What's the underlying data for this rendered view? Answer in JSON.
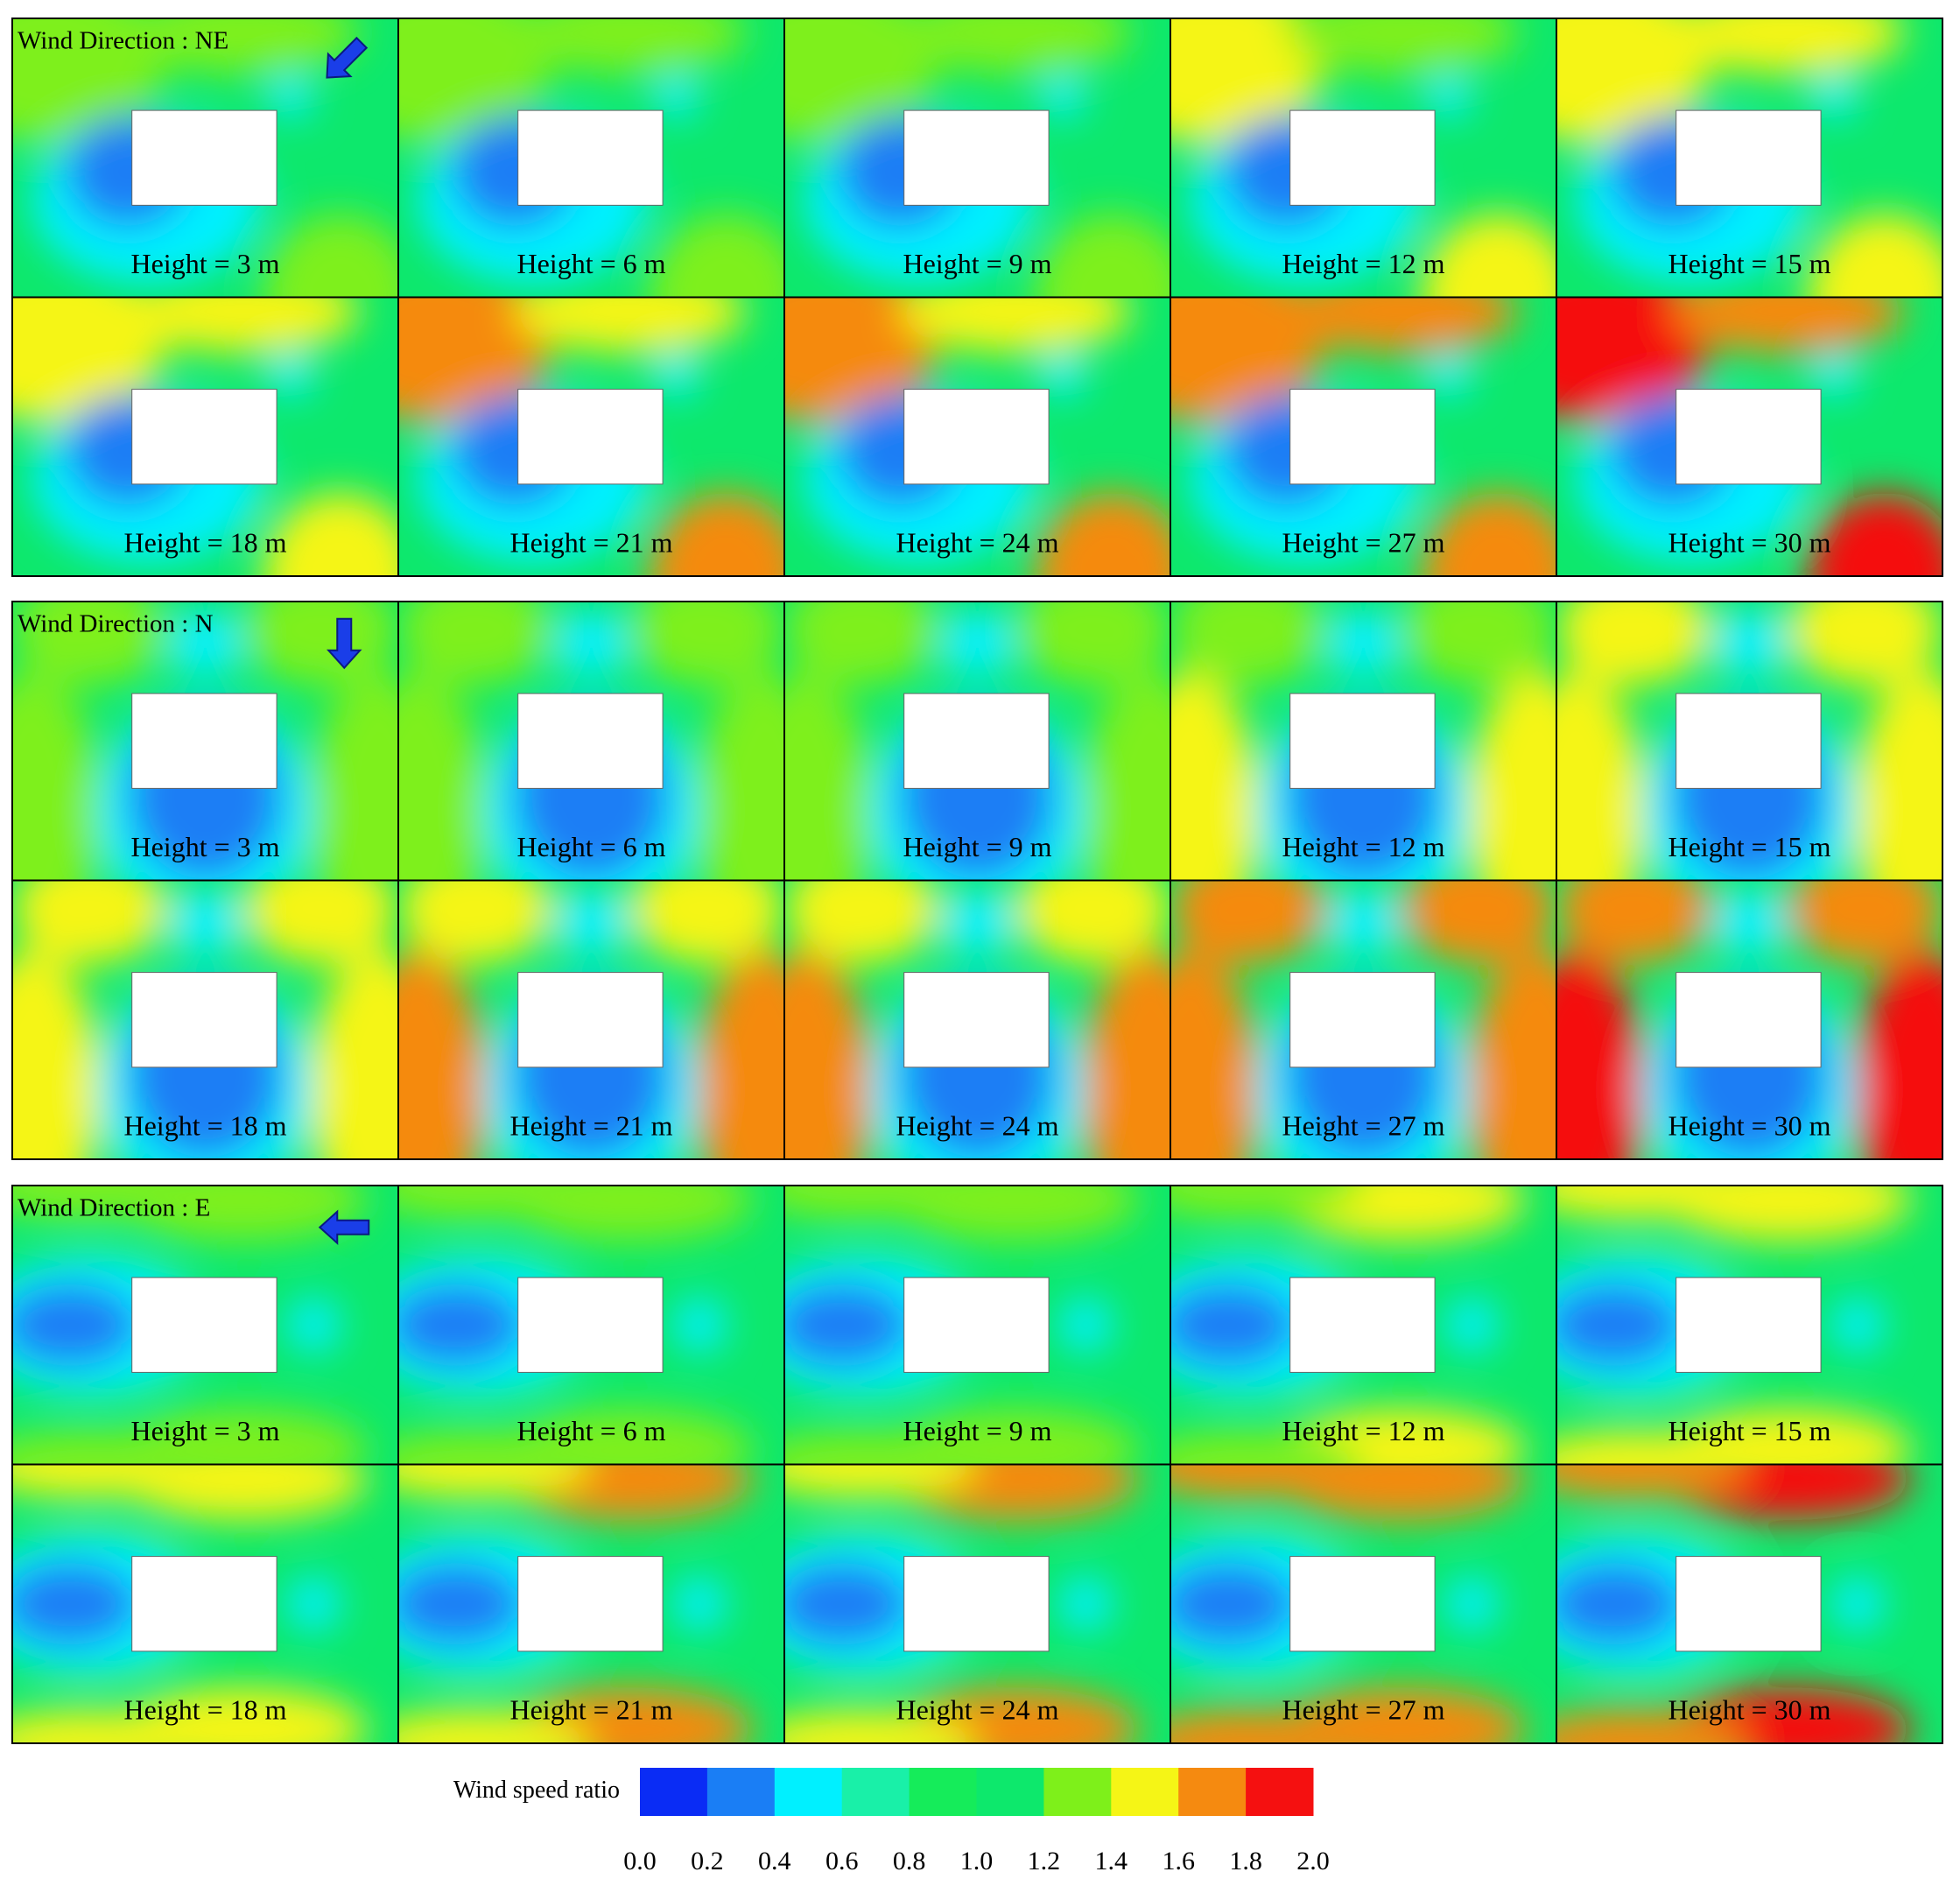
{
  "groups": [
    {
      "title": "Wind Direction : NE",
      "panels": [
        "Height = 3 m",
        "Height = 6 m",
        "Height = 9 m",
        "Height = 12 m",
        "Height = 15 m",
        "Height = 18 m",
        "Height = 21 m",
        "Height = 24 m",
        "Height = 27 m",
        "Height = 30 m"
      ]
    },
    {
      "title": "Wind Direction : N",
      "panels": [
        "Height = 3 m",
        "Height = 6 m",
        "Height = 9 m",
        "Height = 12 m",
        "Height = 15 m",
        "Height = 18 m",
        "Height = 21 m",
        "Height = 24 m",
        "Height = 27 m",
        "Height = 30 m"
      ]
    },
    {
      "title": "Wind Direction : E",
      "panels": [
        "Height = 3 m",
        "Height = 6 m",
        "Height = 9 m",
        "Height = 12 m",
        "Height = 15 m",
        "Height = 18 m",
        "Height = 21 m",
        "Height = 24 m",
        "Height = 27 m",
        "Height = 30 m"
      ]
    }
  ],
  "colorbar": {
    "label": "Wind speed ratio",
    "colors": [
      "#0a2cf5",
      "#1a7ef5",
      "#00f0ff",
      "#19f0a8",
      "#15ec5a",
      "#0de86c",
      "#7ef01a",
      "#f5f516",
      "#f58a10",
      "#f51010"
    ],
    "ticks": [
      "0.0",
      "0.2",
      "0.4",
      "0.6",
      "0.8",
      "1.0",
      "1.2",
      "1.4",
      "1.6",
      "1.8",
      "2.0"
    ]
  }
}
